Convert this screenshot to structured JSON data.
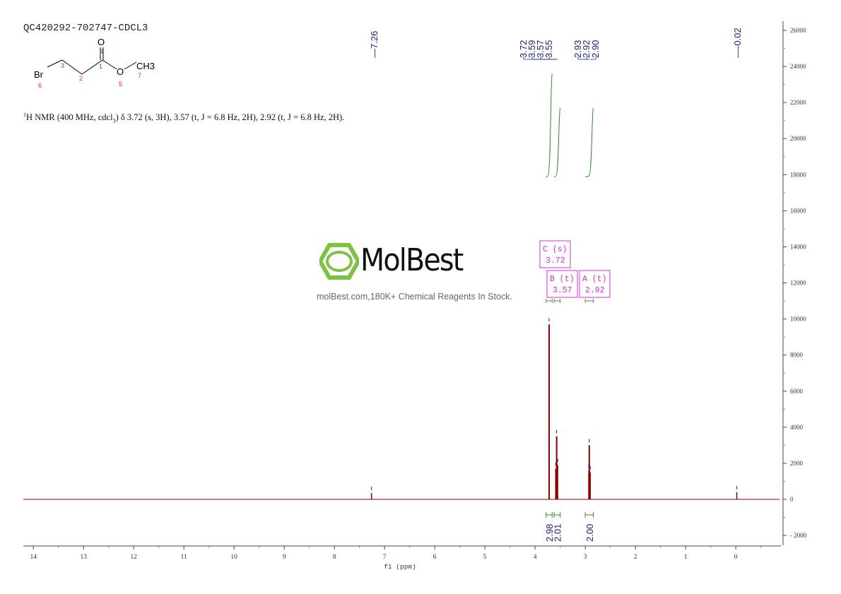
{
  "sample_id": "QC420292-702747-CDCL3",
  "nmr_description": {
    "prefix_sup": "1",
    "text": "H NMR (400 MHz, cdcl",
    "sub": "3",
    "rest": ") δ 3.72 (s, 3H), 3.57 (t, J = 6.8 Hz, 2H), 2.92 (t, J = 6.8 Hz, 2H)."
  },
  "molecule": {
    "atoms": [
      {
        "symbol": "Br",
        "number": "6"
      },
      {
        "symbol": "",
        "number": "3"
      },
      {
        "symbol": "",
        "number": "2"
      },
      {
        "symbol": "",
        "number": "1"
      },
      {
        "symbol": "O",
        "number": "4"
      },
      {
        "symbol": "O",
        "number": "5"
      },
      {
        "symbol": "CH3",
        "number": "7"
      }
    ]
  },
  "watermark": {
    "brand": "MolBest",
    "tagline": "molBest.com,180K+ Chemical Reagents In Stock."
  },
  "colors": {
    "spectrum": "#8b0000",
    "peak_label": "#1a237e",
    "integral": "#2e8b2e",
    "multiplet_box": "#cc33cc",
    "logo_green": "#7dc242"
  },
  "chart_data": {
    "type": "line",
    "xlabel": "f1 (ppm)",
    "xlim": [
      14.2,
      -0.9
    ],
    "ylim": [
      -2500,
      26300
    ],
    "x_ticks": [
      14,
      13,
      12,
      11,
      10,
      9,
      8,
      7,
      6,
      5,
      4,
      3,
      2,
      1,
      0
    ],
    "y_ticks": [
      -2000,
      0,
      2000,
      4000,
      6000,
      8000,
      10000,
      12000,
      14000,
      16000,
      18000,
      20000,
      22000,
      24000,
      26000
    ],
    "y_axis_position": "right",
    "peaks": [
      {
        "ppm": 7.26,
        "height": 350
      },
      {
        "ppm": 3.72,
        "height": 9700
      },
      {
        "ppm": 3.59,
        "height": 1700
      },
      {
        "ppm": 3.57,
        "height": 3500
      },
      {
        "ppm": 3.55,
        "height": 1900
      },
      {
        "ppm": 2.93,
        "height": 1600
      },
      {
        "ppm": 2.92,
        "height": 3000
      },
      {
        "ppm": 2.9,
        "height": 1500
      },
      {
        "ppm": -0.02,
        "height": 400
      }
    ],
    "peak_labels": [
      {
        "group": 1,
        "values": [
          "7.26"
        ],
        "ppm": [
          7.26
        ]
      },
      {
        "group": 2,
        "values": [
          "3.72",
          "3.59",
          "3.57",
          "3.55"
        ],
        "ppm": [
          3.72,
          3.59,
          3.57,
          3.55
        ]
      },
      {
        "group": 3,
        "values": [
          "2.93",
          "2.92",
          "2.90"
        ],
        "ppm": [
          2.93,
          2.92,
          2.9
        ]
      },
      {
        "group": 4,
        "values": [
          "-0.02"
        ],
        "ppm": [
          -0.02
        ]
      }
    ],
    "integrals": [
      {
        "from": 3.78,
        "to": 3.66,
        "value": "2.98",
        "curve_top": 23600
      },
      {
        "from": 3.62,
        "to": 3.5,
        "value": "2.01",
        "curve_top": 21700
      },
      {
        "from": 3.0,
        "to": 2.84,
        "value": "2.00",
        "curve_top": 21700
      }
    ],
    "multiplets": [
      {
        "letter": "C",
        "type": "(s)",
        "shift": "3.72",
        "center": 3.72,
        "from": 3.78,
        "to": 3.66
      },
      {
        "letter": "B",
        "type": "(t)",
        "shift": "3.57",
        "center": 3.57,
        "from": 3.62,
        "to": 3.5
      },
      {
        "letter": "A",
        "type": "(t)",
        "shift": "2.92",
        "center": 2.92,
        "from": 3.0,
        "to": 2.84
      }
    ]
  }
}
